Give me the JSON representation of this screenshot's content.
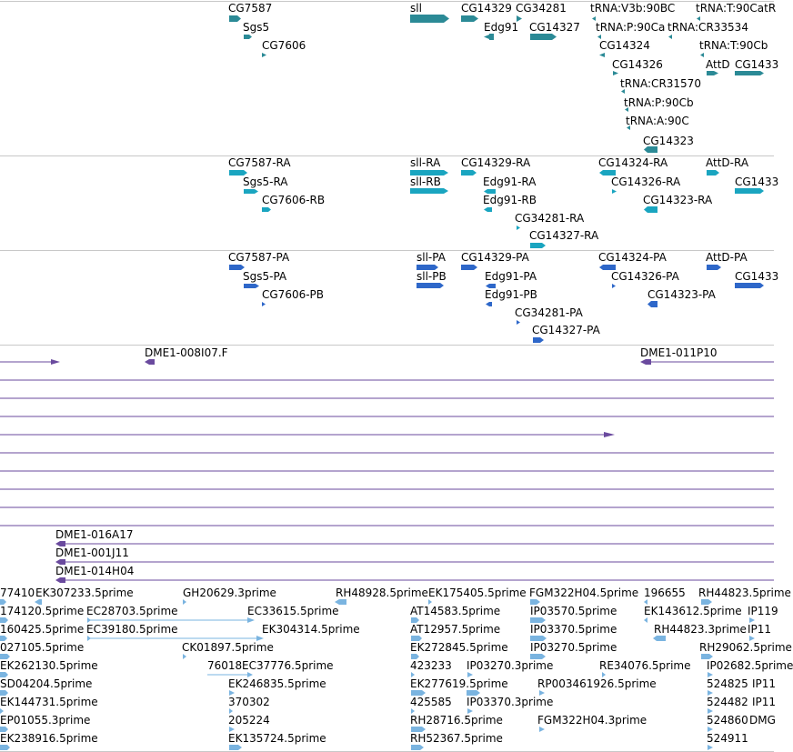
{
  "colors": {
    "genes": "#2b8a96",
    "transcripts": "#1aa5c0",
    "proteins": "#2e67c9",
    "clones": "#6a4a9e",
    "ests": "#7ab4e0",
    "separator": "#c8c8c8"
  },
  "tracks": {
    "genes": [
      {
        "name": "CG7587",
        "label": "CG7587"
      },
      {
        "name": "Sgs5",
        "label": "Sgs5"
      },
      {
        "name": "CG7606",
        "label": "CG7606"
      },
      {
        "name": "sll",
        "label": "sll"
      },
      {
        "name": "CG14329",
        "label": "CG14329"
      },
      {
        "name": "CG34281",
        "label": "CG34281"
      },
      {
        "name": "Edg91",
        "label": "Edg91"
      },
      {
        "name": "CG14327",
        "label": "CG14327"
      },
      {
        "name": "tRNA-V3b-90BC",
        "label": "tRNA:V3b:90BC"
      },
      {
        "name": "tRNA-P-90Ca",
        "label": "tRNA:P:90Ca"
      },
      {
        "name": "tRNA-CR33534",
        "label": "tRNA:CR33534"
      },
      {
        "name": "tRNA-T-90Ca",
        "label": "tRNA:T:90CatR"
      },
      {
        "name": "CG14324",
        "label": "CG14324"
      },
      {
        "name": "tRNA-T-90Cb",
        "label": "tRNA:T:90Cb"
      },
      {
        "name": "CG14326",
        "label": "CG14326"
      },
      {
        "name": "AttD",
        "label": "AttD"
      },
      {
        "name": "CG1433",
        "label": "CG1433"
      },
      {
        "name": "tRNA-CR31570",
        "label": "tRNA:CR31570"
      },
      {
        "name": "tRNA-P-90Cb",
        "label": "tRNA:P:90Cb"
      },
      {
        "name": "tRNA-A-90C",
        "label": "tRNA:A:90C"
      },
      {
        "name": "CG14323",
        "label": "CG14323"
      }
    ],
    "transcripts": [
      {
        "name": "CG7587-RA",
        "label": "CG7587-RA"
      },
      {
        "name": "Sgs5-RA",
        "label": "Sgs5-RA"
      },
      {
        "name": "CG7606-RB",
        "label": "CG7606-RB"
      },
      {
        "name": "sll-RA",
        "label": "sll-RA"
      },
      {
        "name": "sll-RB",
        "label": "sll-RB"
      },
      {
        "name": "CG14329-RA",
        "label": "CG14329-RA"
      },
      {
        "name": "Edg91-RA",
        "label": "Edg91-RA"
      },
      {
        "name": "Edg91-RB",
        "label": "Edg91-RB"
      },
      {
        "name": "CG34281-RA",
        "label": "CG34281-RA"
      },
      {
        "name": "CG14327-RA",
        "label": "CG14327-RA"
      },
      {
        "name": "CG14324-RA",
        "label": "CG14324-RA"
      },
      {
        "name": "CG14326-RA",
        "label": "CG14326-RA"
      },
      {
        "name": "CG14323-RA",
        "label": "CG14323-RA"
      },
      {
        "name": "AttD-RA",
        "label": "AttD-RA"
      },
      {
        "name": "CG1433x-RA",
        "label": "CG1433"
      }
    ],
    "proteins": [
      {
        "name": "CG7587-PA",
        "label": "CG7587-PA"
      },
      {
        "name": "Sgs5-PA",
        "label": "Sgs5-PA"
      },
      {
        "name": "CG7606-PB",
        "label": "CG7606-PB"
      },
      {
        "name": "sll-PA",
        "label": "sll-PA"
      },
      {
        "name": "sll-PB",
        "label": "sll-PB"
      },
      {
        "name": "CG14329-PA",
        "label": "CG14329-PA"
      },
      {
        "name": "Edg91-PA",
        "label": "Edg91-PA"
      },
      {
        "name": "Edg91-PB",
        "label": "Edg91-PB"
      },
      {
        "name": "CG34281-PA",
        "label": "CG34281-PA"
      },
      {
        "name": "CG14327-PA",
        "label": "CG14327-PA"
      },
      {
        "name": "CG14324-PA",
        "label": "CG14324-PA"
      },
      {
        "name": "CG14326-PA",
        "label": "CG14326-PA"
      },
      {
        "name": "CG14323-PA",
        "label": "CG14323-PA"
      },
      {
        "name": "AttD-PA",
        "label": "AttD-PA"
      },
      {
        "name": "CG1433x-PA",
        "label": "CG1433"
      }
    ],
    "clones": [
      {
        "name": "DME1-008I07.F",
        "label": "DME1-008I07.F"
      },
      {
        "name": "DME1-011P10",
        "label": "DME1-011P10"
      },
      {
        "name": "DME1-016A17",
        "label": "DME1-016A17"
      },
      {
        "name": "DME1-001J11",
        "label": "DME1-001J11"
      },
      {
        "name": "DME1-014H04",
        "label": "DME1-014H04"
      }
    ],
    "ests": [
      {
        "name": "est-77410",
        "label": "77410"
      },
      {
        "name": "est-EK307233",
        "label": "EK307233.5prime"
      },
      {
        "name": "est-GH20629",
        "label": "GH20629.3prime"
      },
      {
        "name": "est-RH48928",
        "label": "RH48928.5prime"
      },
      {
        "name": "est-EK175405",
        "label": "EK175405.5prime"
      },
      {
        "name": "est-FGM322H04-5",
        "label": "FGM322H04.5prime"
      },
      {
        "name": "est-196655",
        "label": "196655"
      },
      {
        "name": "est-RH44823-5",
        "label": "RH44823.5prime"
      },
      {
        "name": "est-174120",
        "label": "174120.5prime"
      },
      {
        "name": "est-EC28703",
        "label": "EC28703.5prime"
      },
      {
        "name": "est-EC33615",
        "label": "EC33615.5prime"
      },
      {
        "name": "est-AT14583",
        "label": "AT14583.5prime"
      },
      {
        "name": "est-IP03570",
        "label": "IP03570.5prime"
      },
      {
        "name": "est-EK143612",
        "label": "EK143612.5prime"
      },
      {
        "name": "est-IP119",
        "label": "IP119"
      },
      {
        "name": "est-160425",
        "label": "160425.5prime"
      },
      {
        "name": "est-EC39180",
        "label": "EC39180.5prime"
      },
      {
        "name": "est-EK304314",
        "label": "EK304314.5prime"
      },
      {
        "name": "est-AT12957",
        "label": "AT12957.5prime"
      },
      {
        "name": "est-IP03370-5",
        "label": "IP03370.5prime"
      },
      {
        "name": "est-RH44823-3",
        "label": "RH44823.3prime"
      },
      {
        "name": "est-IP11a",
        "label": "IP11"
      },
      {
        "name": "est-027105",
        "label": "027105.5prime"
      },
      {
        "name": "est-CK01897",
        "label": "CK01897.5prime"
      },
      {
        "name": "est-EK272845",
        "label": "EK272845.5prime"
      },
      {
        "name": "est-IP03270-5",
        "label": "IP03270.5prime"
      },
      {
        "name": "est-RH29062",
        "label": "RH29062.5prime"
      },
      {
        "name": "est-EK262130",
        "label": "EK262130.5prime"
      },
      {
        "name": "est-76018",
        "label": "76018"
      },
      {
        "name": "est-EC37776",
        "label": "EC37776.5prime"
      },
      {
        "name": "est-423233",
        "label": "423233"
      },
      {
        "name": "est-IP03270-3",
        "label": "IP03270.3prime"
      },
      {
        "name": "est-RE34076",
        "label": "RE34076.5prime"
      },
      {
        "name": "est-IP02682",
        "label": "IP02682.5prime"
      },
      {
        "name": "est-SD04204",
        "label": "SD04204.5prime"
      },
      {
        "name": "est-EK246835",
        "label": "EK246835.5prime"
      },
      {
        "name": "est-EK277619",
        "label": "EK277619.5prime"
      },
      {
        "name": "est-RP003461926",
        "label": "RP003461926.5prime"
      },
      {
        "name": "est-524825",
        "label": "524825"
      },
      {
        "name": "est-IP11b",
        "label": "IP11"
      },
      {
        "name": "est-EK144731",
        "label": "EK144731.5prime"
      },
      {
        "name": "est-370302",
        "label": "370302"
      },
      {
        "name": "est-425585",
        "label": "425585"
      },
      {
        "name": "est-IP03370-3",
        "label": "IP03370.3prime"
      },
      {
        "name": "est-524482",
        "label": "524482"
      },
      {
        "name": "est-IP11c",
        "label": "IP11"
      },
      {
        "name": "est-EP01055",
        "label": "EP01055.3prime"
      },
      {
        "name": "est-205224",
        "label": "205224"
      },
      {
        "name": "est-RH28716",
        "label": "RH28716.5prime"
      },
      {
        "name": "est-FGM322H04-3",
        "label": "FGM322H04.3prime"
      },
      {
        "name": "est-524860",
        "label": "524860"
      },
      {
        "name": "est-DMG",
        "label": "DMG"
      },
      {
        "name": "est-EK238916",
        "label": "EK238916.5prime"
      },
      {
        "name": "est-EK135724",
        "label": "EK135724.5prime"
      },
      {
        "name": "est-RH52367",
        "label": "RH52367.5prime"
      },
      {
        "name": "est-524911",
        "label": "524911"
      }
    ]
  }
}
